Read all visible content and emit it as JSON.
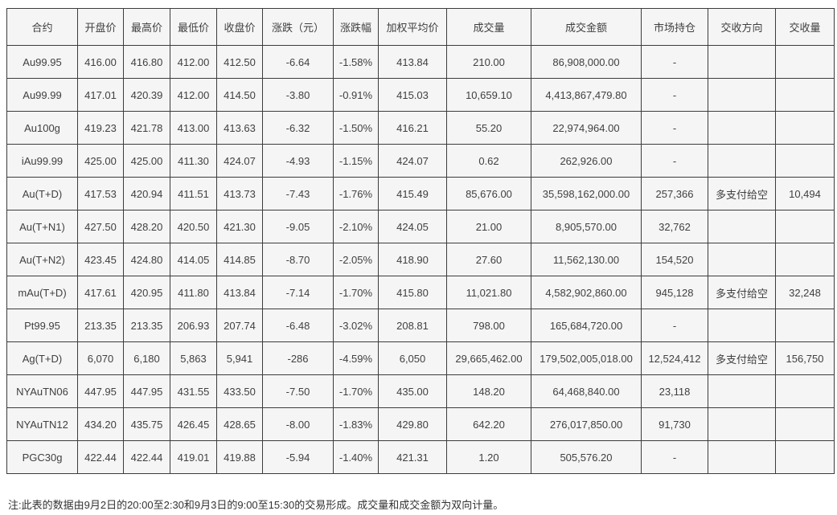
{
  "table": {
    "headers": [
      "合约",
      "开盘价",
      "最高价",
      "最低价",
      "收盘价",
      "涨跌（元）",
      "涨跌幅",
      "加权平均价",
      "成交量",
      "成交金额",
      "市场持仓",
      "交收方向",
      "交收量"
    ],
    "rows": [
      [
        "Au99.95",
        "416.00",
        "416.80",
        "412.00",
        "412.50",
        "-6.64",
        "-1.58%",
        "413.84",
        "210.00",
        "86,908,000.00",
        "-",
        "",
        ""
      ],
      [
        "Au99.99",
        "417.01",
        "420.39",
        "412.00",
        "414.50",
        "-3.80",
        "-0.91%",
        "415.03",
        "10,659.10",
        "4,413,867,479.80",
        "-",
        "",
        ""
      ],
      [
        "Au100g",
        "419.23",
        "421.78",
        "413.00",
        "413.63",
        "-6.32",
        "-1.50%",
        "416.21",
        "55.20",
        "22,974,964.00",
        "-",
        "",
        ""
      ],
      [
        "iAu99.99",
        "425.00",
        "425.00",
        "411.30",
        "424.07",
        "-4.93",
        "-1.15%",
        "424.07",
        "0.62",
        "262,926.00",
        "-",
        "",
        ""
      ],
      [
        "Au(T+D)",
        "417.53",
        "420.94",
        "411.51",
        "413.73",
        "-7.43",
        "-1.76%",
        "415.49",
        "85,676.00",
        "35,598,162,000.00",
        "257,366",
        "多支付给空",
        "10,494"
      ],
      [
        "Au(T+N1)",
        "427.50",
        "428.20",
        "420.50",
        "421.30",
        "-9.05",
        "-2.10%",
        "424.05",
        "21.00",
        "8,905,570.00",
        "32,762",
        "",
        ""
      ],
      [
        "Au(T+N2)",
        "423.45",
        "424.80",
        "414.05",
        "414.85",
        "-8.70",
        "-2.05%",
        "418.90",
        "27.60",
        "11,562,130.00",
        "154,520",
        "",
        ""
      ],
      [
        "mAu(T+D)",
        "417.61",
        "420.95",
        "411.80",
        "413.84",
        "-7.14",
        "-1.70%",
        "415.80",
        "11,021.80",
        "4,582,902,860.00",
        "945,128",
        "多支付给空",
        "32,248"
      ],
      [
        "Pt99.95",
        "213.35",
        "213.35",
        "206.93",
        "207.74",
        "-6.48",
        "-3.02%",
        "208.81",
        "798.00",
        "165,684,720.00",
        "-",
        "",
        ""
      ],
      [
        "Ag(T+D)",
        "6,070",
        "6,180",
        "5,863",
        "5,941",
        "-286",
        "-4.59%",
        "6,050",
        "29,665,462.00",
        "179,502,005,018.00",
        "12,524,412",
        "多支付给空",
        "156,750"
      ],
      [
        "NYAuTN06",
        "447.95",
        "447.95",
        "431.55",
        "433.50",
        "-7.50",
        "-1.70%",
        "435.00",
        "148.20",
        "64,468,840.00",
        "23,118",
        "",
        ""
      ],
      [
        "NYAuTN12",
        "434.20",
        "435.75",
        "426.45",
        "428.65",
        "-8.00",
        "-1.83%",
        "429.80",
        "642.20",
        "276,017,850.00",
        "91,730",
        "",
        ""
      ],
      [
        "PGC30g",
        "422.44",
        "422.44",
        "419.01",
        "419.88",
        "-5.94",
        "-1.40%",
        "421.31",
        "1.20",
        "505,576.20",
        "-",
        "",
        ""
      ]
    ]
  },
  "note": "注:此表的数据由9月2日的20:00至2:30和9月3日的9:00至15:30的交易形成。成交量和成交金额为双向计量。",
  "colors": {
    "cell_background": "#f5f5f5",
    "border": "#3c3c3c",
    "text": "#404040",
    "page_background": "#ffffff"
  }
}
